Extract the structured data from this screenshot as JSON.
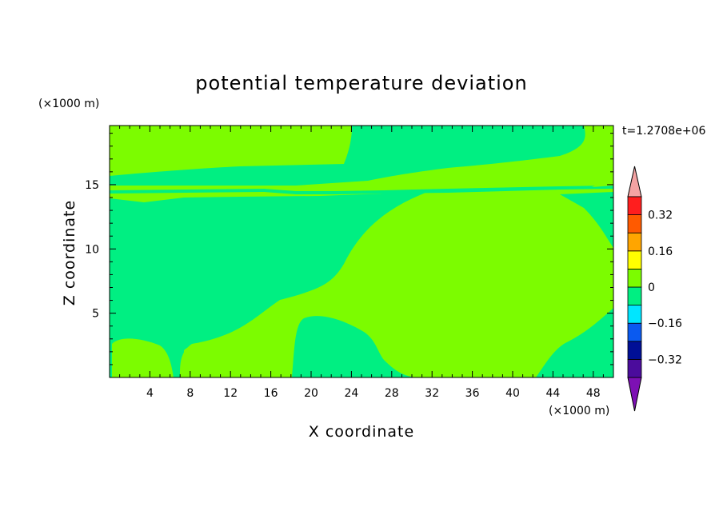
{
  "chart_data": {
    "type": "heatmap",
    "title": "potential temperature deviation",
    "xlabel": "X coordinate",
    "ylabel": "Z coordinate",
    "x_unit": "(×1000 m)",
    "y_unit": "(×1000 m)",
    "time_label": "t=1.2708e+06",
    "xlim": [
      0,
      50
    ],
    "ylim": [
      0,
      19.6
    ],
    "x_ticks": [
      "4",
      "8",
      "12",
      "16",
      "20",
      "24",
      "28",
      "32",
      "36",
      "40",
      "44",
      "48"
    ],
    "y_ticks": [
      "5",
      "10",
      "15"
    ],
    "colorbar": {
      "levels": [
        -0.4,
        -0.32,
        -0.24,
        -0.16,
        -0.08,
        0,
        0.08,
        0.16,
        0.24,
        0.32,
        0.4
      ],
      "colors": [
        "#4b0c9c",
        "#000f96",
        "#0a5af0",
        "#00e6ff",
        "#00ef82",
        "#7cfc00",
        "#ffff00",
        "#ffa500",
        "#ff5a00",
        "#ff1e1e"
      ],
      "under_color": "#7d10b4",
      "over_color": "#f4a3a3",
      "tick_labels": [
        "−0.32",
        "−0.16",
        "0",
        "0.16",
        "0.32"
      ]
    },
    "regions": [
      {
        "fill_index": 4,
        "range": "-0.08 to 0",
        "description_area": "lower-left and mid-level layers"
      },
      {
        "fill_index": 5,
        "range": "0 to 0.08",
        "description_area": "upper layer and large warm dome centered near x=36, z=7"
      }
    ]
  }
}
